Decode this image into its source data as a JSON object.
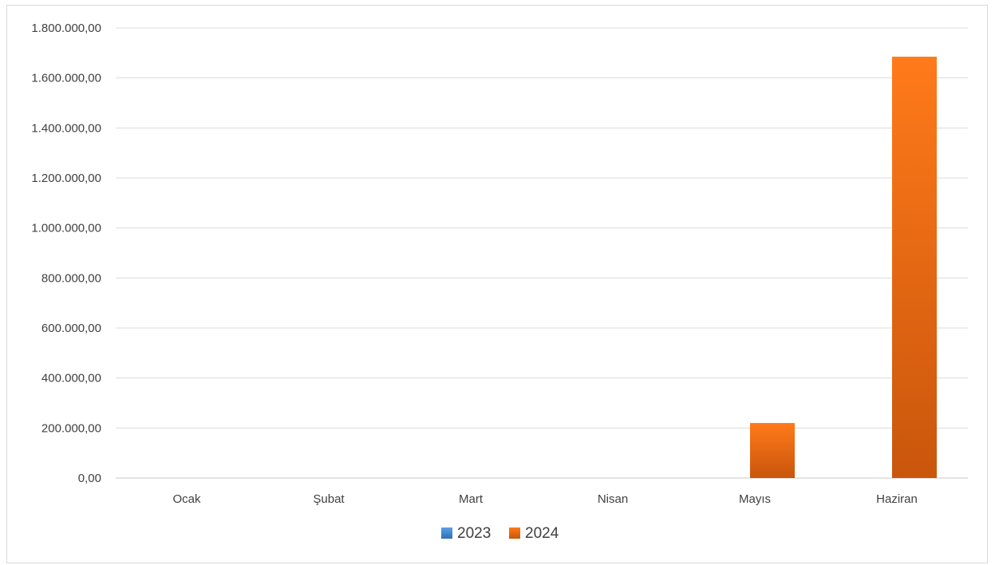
{
  "chart_data": {
    "type": "bar",
    "categories": [
      "Ocak",
      "Şubat",
      "Mart",
      "Nisan",
      "Mayıs",
      "Haziran"
    ],
    "series": [
      {
        "name": "2023",
        "values": [
          0,
          0,
          0,
          0,
          0,
          0
        ],
        "color": "#4a90d9"
      },
      {
        "name": "2024",
        "values": [
          0,
          0,
          0,
          0,
          220000,
          1685000
        ],
        "color": "#f57c1f"
      }
    ],
    "ylim": [
      0,
      1800000
    ],
    "yticks": [
      0,
      200000,
      400000,
      600000,
      800000,
      1000000,
      1200000,
      1400000,
      1600000,
      1800000
    ],
    "ytick_labels": [
      "0,00",
      "200.000,00",
      "400.000,00",
      "600.000,00",
      "800.000,00",
      "1.000.000,00",
      "1.200.000,00",
      "1.400.000,00",
      "1.600.000,00",
      "1.800.000,00"
    ],
    "grid": true,
    "legend_position": "bottom"
  }
}
